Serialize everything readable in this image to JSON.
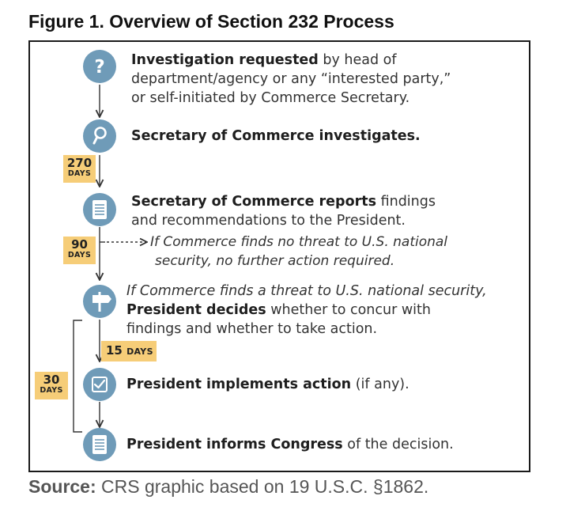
{
  "figure": {
    "title": "Figure 1. Overview of Section 232 Process",
    "source_label": "Source:",
    "source_text": " CRS graphic based on 19 U.S.C. §1862."
  },
  "steps": [
    {
      "icon": "question-mark-icon",
      "bold": "Investigation requested",
      "rest_line1": " by head of",
      "line2": "department/agency or any “interested party,”",
      "line3": "or self-initiated by Commerce Secretary."
    },
    {
      "icon": "magnifier-icon",
      "bold": "Secretary of Commerce investigates."
    },
    {
      "icon": "document-icon",
      "bold": "Secretary of Commerce reports",
      "rest_line1": " findings",
      "line2": "and recommendations to the President."
    },
    {
      "icon": "signpost-icon",
      "line1": "If Commerce finds a threat to U.S. national security,",
      "bold": "President decides",
      "rest_line2": " whether to concur with",
      "line3": "findings and whether to take action."
    },
    {
      "icon": "checkbox-icon",
      "bold": "President implements action",
      "rest_line1": " (if any)."
    },
    {
      "icon": "document-icon",
      "bold": "President informs Congress",
      "rest_line1": " of the decision."
    }
  ],
  "branch_note": {
    "line1": "If Commerce finds no threat to U.S. national",
    "line2": "security, no further action required."
  },
  "durations": {
    "investigation": {
      "number": "270",
      "unit": "DAYS"
    },
    "decision": {
      "number": "90",
      "unit": "DAYS"
    },
    "implementation": {
      "number": "15",
      "unit": "DAYS"
    },
    "report_to_congress": {
      "number": "30",
      "unit": "DAYS"
    }
  },
  "colors": {
    "icon_fill": "#6f9bb8",
    "badge": "#f6cd78",
    "line": "#333333"
  }
}
